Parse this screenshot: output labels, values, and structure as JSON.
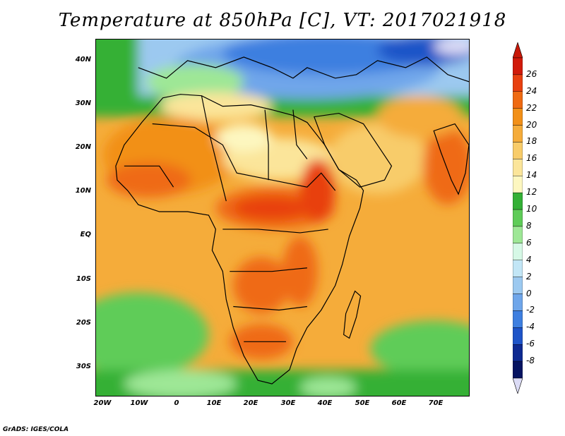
{
  "title": "Temperature at 850hPa [C], VT: 2017021918",
  "credit": "GrADS: IGES/COLA",
  "lat_labels": [
    "40N",
    "30N",
    "20N",
    "10N",
    "EQ",
    "10S",
    "20S",
    "30S"
  ],
  "lon_labels": [
    "20W",
    "10W",
    "0",
    "10E",
    "20E",
    "30E",
    "40E",
    "50E",
    "60E",
    "70E"
  ],
  "colorbar": {
    "labels": [
      "26",
      "24",
      "22",
      "20",
      "18",
      "16",
      "14",
      "12",
      "10",
      "8",
      "6",
      "4",
      "2",
      "0",
      "-2",
      "-4",
      "-6",
      "-8"
    ],
    "colors": [
      "#d11a0a",
      "#e84010",
      "#ef6a12",
      "#f29018",
      "#f5ac3a",
      "#f8cc6a",
      "#fbe59a",
      "#fdf7c0",
      "#34b036",
      "#5fcc58",
      "#9ee796",
      "#d6f8e6",
      "#c2e6f6",
      "#9cc9f0",
      "#6fa6ea",
      "#3e7fe0",
      "#1e54c8",
      "#0e2a92",
      "#061462"
    ]
  },
  "legend_arrow_top_color": "#c81808",
  "legend_arrow_bottom_color": "#dcdcf6"
}
